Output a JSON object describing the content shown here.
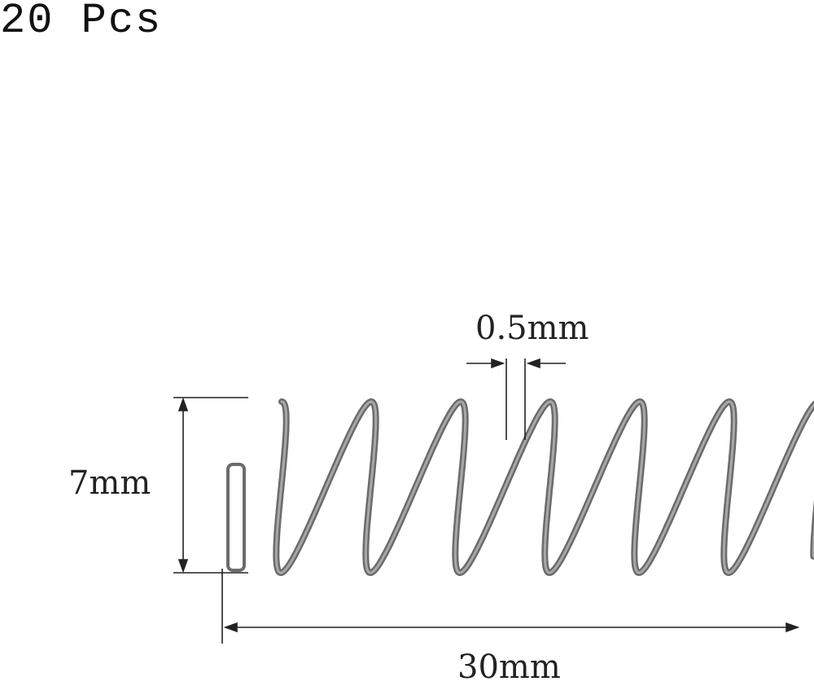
{
  "quantity_label": "20 Pcs",
  "dimensions": {
    "outer_diameter": "7mm",
    "length": "30mm",
    "wire_diameter": "0.5mm"
  },
  "colors": {
    "spring": "#6b6b6b",
    "dimension_lines": "#222222",
    "background": "#ffffff"
  }
}
